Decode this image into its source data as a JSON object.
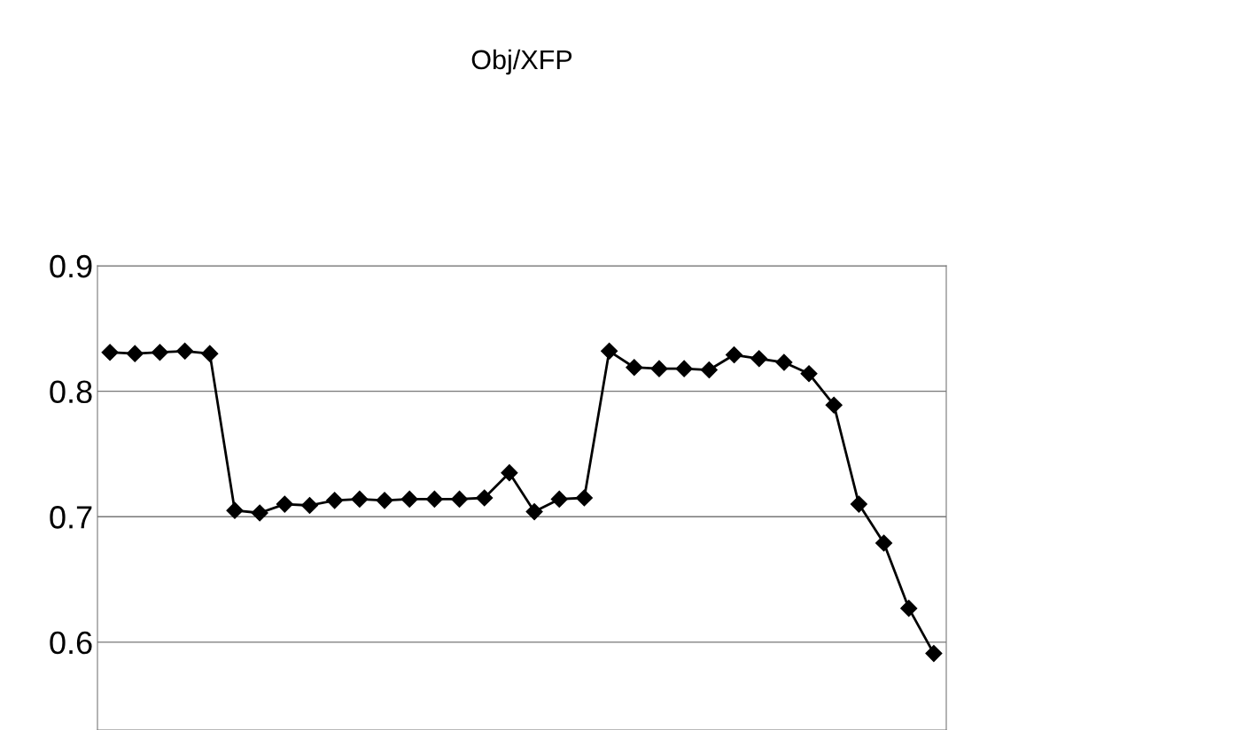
{
  "chart_data": {
    "type": "line",
    "title": "Obj/XFP",
    "categories": [
      null,
      null,
      null,
      null,
      null,
      null,
      null,
      null,
      null,
      null,
      null,
      null,
      null,
      null,
      null,
      null,
      null,
      null,
      null,
      null,
      null,
      null,
      null,
      null,
      null,
      null,
      null,
      null,
      null,
      null,
      null,
      null,
      null,
      null
    ],
    "series": [
      {
        "color": "#000000",
        "values": [
          0.831,
          0.83,
          0.831,
          0.832,
          0.83,
          0.705,
          0.703,
          0.71,
          0.709,
          0.713,
          0.714,
          0.713,
          0.714,
          0.714,
          0.714,
          0.715,
          0.735,
          0.704,
          0.714,
          0.715,
          0.832,
          0.819,
          0.818,
          0.818,
          0.817,
          0.829,
          0.826,
          0.823,
          0.814,
          0.789,
          0.71,
          0.679,
          0.627,
          0.591
        ]
      }
    ],
    "ylim": [
      0.53,
      0.9
    ],
    "yticks": [
      0.6,
      0.7,
      0.8,
      0.9
    ],
    "grid": "y",
    "marker": "diamond",
    "line_style": "solid",
    "tick_labels": "y"
  }
}
